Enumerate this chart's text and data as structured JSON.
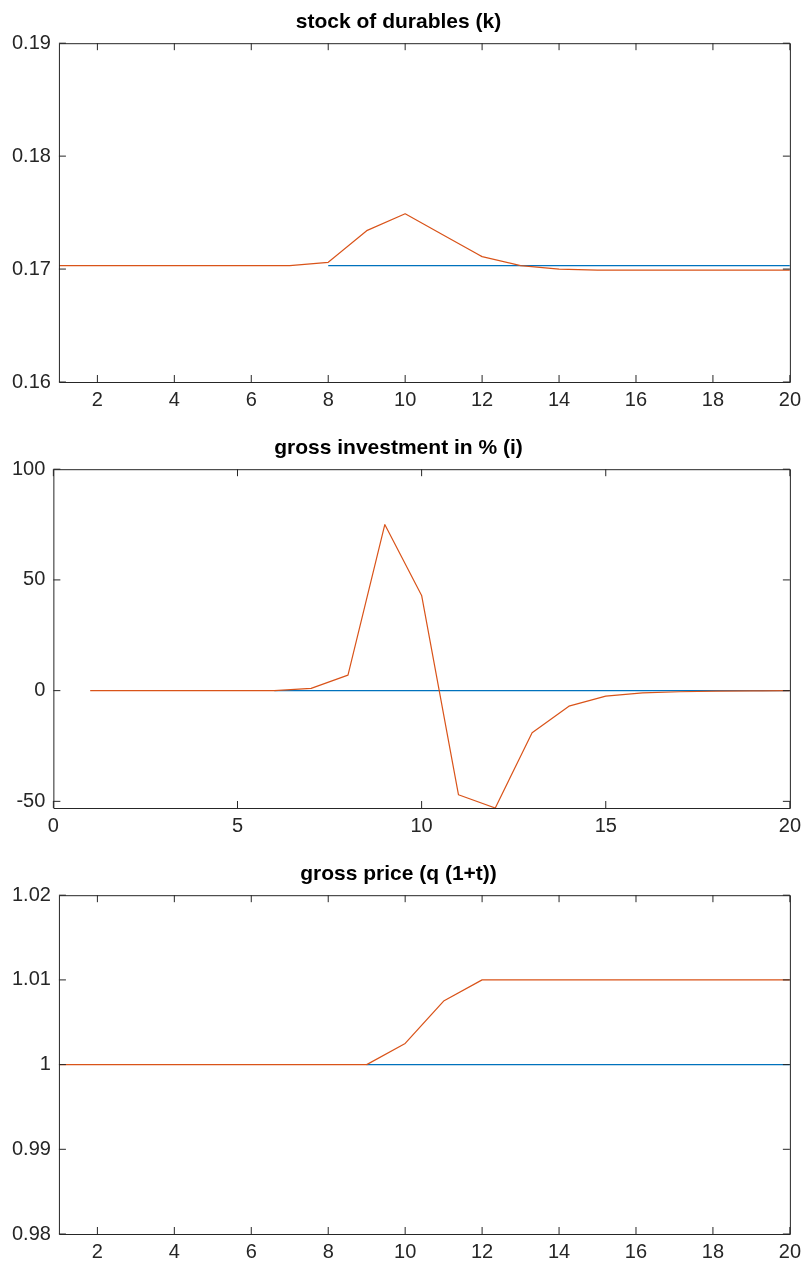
{
  "chart_data": [
    {
      "type": "line",
      "title": "stock of durables (k)",
      "x": [
        1,
        2,
        3,
        4,
        5,
        6,
        7,
        8,
        9,
        10,
        11,
        12,
        13,
        14,
        15,
        16,
        17,
        18,
        19,
        20
      ],
      "series": [
        {
          "color": "#0072bd",
          "values": [
            null,
            null,
            null,
            null,
            null,
            null,
            null,
            0.1703,
            0.1703,
            0.1703,
            0.1703,
            0.1703,
            0.1703,
            0.1703,
            0.1703,
            0.1703,
            0.1703,
            0.1703,
            0.1703,
            0.1703
          ]
        },
        {
          "color": "#d95319",
          "values": [
            0.1703,
            0.1703,
            0.1703,
            0.1703,
            0.1703,
            0.1703,
            0.1703,
            0.1706,
            0.1734,
            0.1749,
            0.173,
            0.1711,
            0.1703,
            0.17,
            0.1699,
            0.1699,
            0.1699,
            0.1699,
            0.1699,
            0.1699
          ]
        }
      ],
      "xlim": [
        1,
        20
      ],
      "xticks": [
        2,
        4,
        6,
        8,
        10,
        12,
        14,
        16,
        18,
        20
      ],
      "ylim": [
        0.16,
        0.19
      ],
      "yticks": [
        0.16,
        0.17,
        0.18,
        0.19
      ],
      "grid": false,
      "legend": false,
      "marker": "none",
      "line_style": "solid"
    },
    {
      "type": "line",
      "title": "gross investment in % (i)",
      "x": [
        1,
        2,
        3,
        4,
        5,
        6,
        7,
        8,
        9,
        10,
        11,
        12,
        13,
        14,
        15,
        16,
        17,
        18,
        19,
        20
      ],
      "series": [
        {
          "color": "#0072bd",
          "values": [
            null,
            null,
            null,
            null,
            null,
            0,
            0,
            0,
            0,
            0,
            0,
            0,
            0,
            0,
            0,
            0,
            0,
            0,
            0,
            0
          ]
        },
        {
          "color": "#d95319",
          "values": [
            0,
            0,
            0,
            0,
            0,
            0,
            1,
            7,
            75,
            43,
            -47,
            -53,
            -19,
            -7,
            -2.5,
            -1,
            -0.5,
            -0.2,
            -0.1,
            0
          ]
        }
      ],
      "xlim": [
        0,
        20
      ],
      "xticks": [
        0,
        5,
        10,
        15,
        20
      ],
      "ylim": [
        -53,
        100
      ],
      "yticks": [
        -50,
        0,
        50,
        100
      ],
      "grid": false,
      "legend": false,
      "marker": "none",
      "line_style": "solid"
    },
    {
      "type": "line",
      "title": "gross price (q (1+t))",
      "x": [
        1,
        2,
        3,
        4,
        5,
        6,
        7,
        8,
        9,
        10,
        11,
        12,
        13,
        14,
        15,
        16,
        17,
        18,
        19,
        20
      ],
      "series": [
        {
          "color": "#0072bd",
          "values": [
            null,
            null,
            null,
            null,
            null,
            null,
            null,
            null,
            1,
            1,
            1,
            1,
            1,
            1,
            1,
            1,
            1,
            1,
            1,
            1
          ]
        },
        {
          "color": "#d95319",
          "values": [
            1,
            1,
            1,
            1,
            1,
            1,
            1,
            1,
            1,
            1.0025,
            1.0075,
            1.01,
            1.01,
            1.01,
            1.01,
            1.01,
            1.01,
            1.01,
            1.01,
            1.01
          ]
        }
      ],
      "xlim": [
        1,
        20
      ],
      "xticks": [
        2,
        4,
        6,
        8,
        10,
        12,
        14,
        16,
        18,
        20
      ],
      "ylim": [
        0.98,
        1.02
      ],
      "yticks": [
        0.98,
        0.99,
        1,
        1.01,
        1.02
      ],
      "grid": false,
      "legend": false,
      "marker": "none",
      "line_style": "solid"
    }
  ]
}
